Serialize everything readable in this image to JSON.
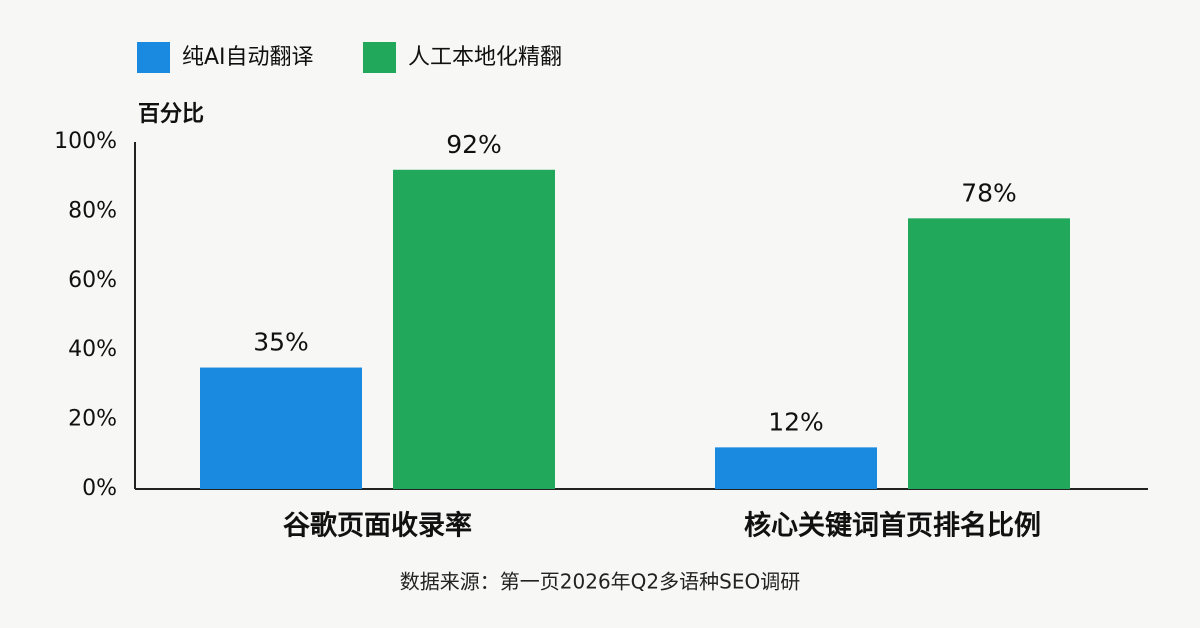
{
  "chart_data": {
    "type": "bar",
    "y_label": "百分比",
    "source": "数据来源：第一页2026年Q2多语种SEO调研",
    "categories": [
      "谷歌页面收录率",
      "核心关键词首页排名比例"
    ],
    "series": [
      {
        "name": "纯AI自动翻译",
        "color": "#1a8ae0",
        "values": [
          35,
          12
        ],
        "value_labels": [
          "35%",
          "12%"
        ]
      },
      {
        "name": "人工本地化精翻",
        "color": "#22a85a",
        "values": [
          92,
          78
        ],
        "value_labels": [
          "92%",
          "78%"
        ]
      }
    ],
    "ylim": [
      0,
      100
    ],
    "yticks": [
      {
        "value": 0,
        "label": "0%"
      },
      {
        "value": 20,
        "label": "20%"
      },
      {
        "value": 40,
        "label": "40%"
      },
      {
        "value": 60,
        "label": "60%"
      },
      {
        "value": 80,
        "label": "80%"
      },
      {
        "value": 100,
        "label": "100%"
      }
    ],
    "grid": false
  }
}
